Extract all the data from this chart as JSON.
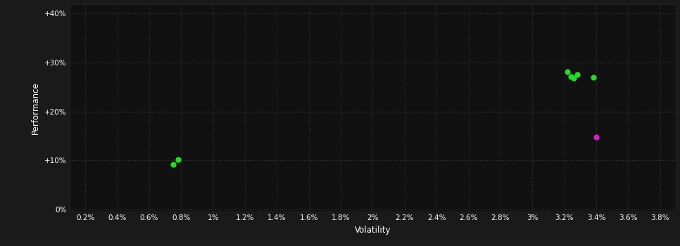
{
  "background_color": "#1a1a1a",
  "plot_bg_color": "#111111",
  "text_color": "#ffffff",
  "xlabel": "Volatility",
  "ylabel": "Performance",
  "xlim": [
    0.001,
    0.039
  ],
  "ylim": [
    -0.005,
    0.42
  ],
  "xticks": [
    0.002,
    0.004,
    0.006,
    0.008,
    0.01,
    0.012,
    0.014,
    0.016,
    0.018,
    0.02,
    0.022,
    0.024,
    0.026,
    0.028,
    0.03,
    0.032,
    0.034,
    0.036,
    0.038
  ],
  "yticks": [
    0.0,
    0.1,
    0.2,
    0.3,
    0.4
  ],
  "ytick_labels": [
    "0%",
    "+10%",
    "+20%",
    "+30%",
    "+40%"
  ],
  "xtick_labels": [
    "0.2%",
    "0.4%",
    "0.6%",
    "0.8%",
    "1%",
    "1.2%",
    "1.4%",
    "1.6%",
    "1.8%",
    "2%",
    "2.2%",
    "2.4%",
    "2.6%",
    "2.8%",
    "3%",
    "3.2%",
    "3.4%",
    "3.6%",
    "3.8%"
  ],
  "green_points": [
    [
      0.0078,
      0.101
    ],
    [
      0.0075,
      0.091
    ],
    [
      0.0322,
      0.282
    ],
    [
      0.0324,
      0.272
    ],
    [
      0.0326,
      0.268
    ],
    [
      0.0328,
      0.275
    ],
    [
      0.0338,
      0.27
    ]
  ],
  "magenta_points": [
    [
      0.034,
      0.148
    ]
  ],
  "point_size": 35,
  "green_color": "#22dd22",
  "magenta_color": "#cc22cc"
}
